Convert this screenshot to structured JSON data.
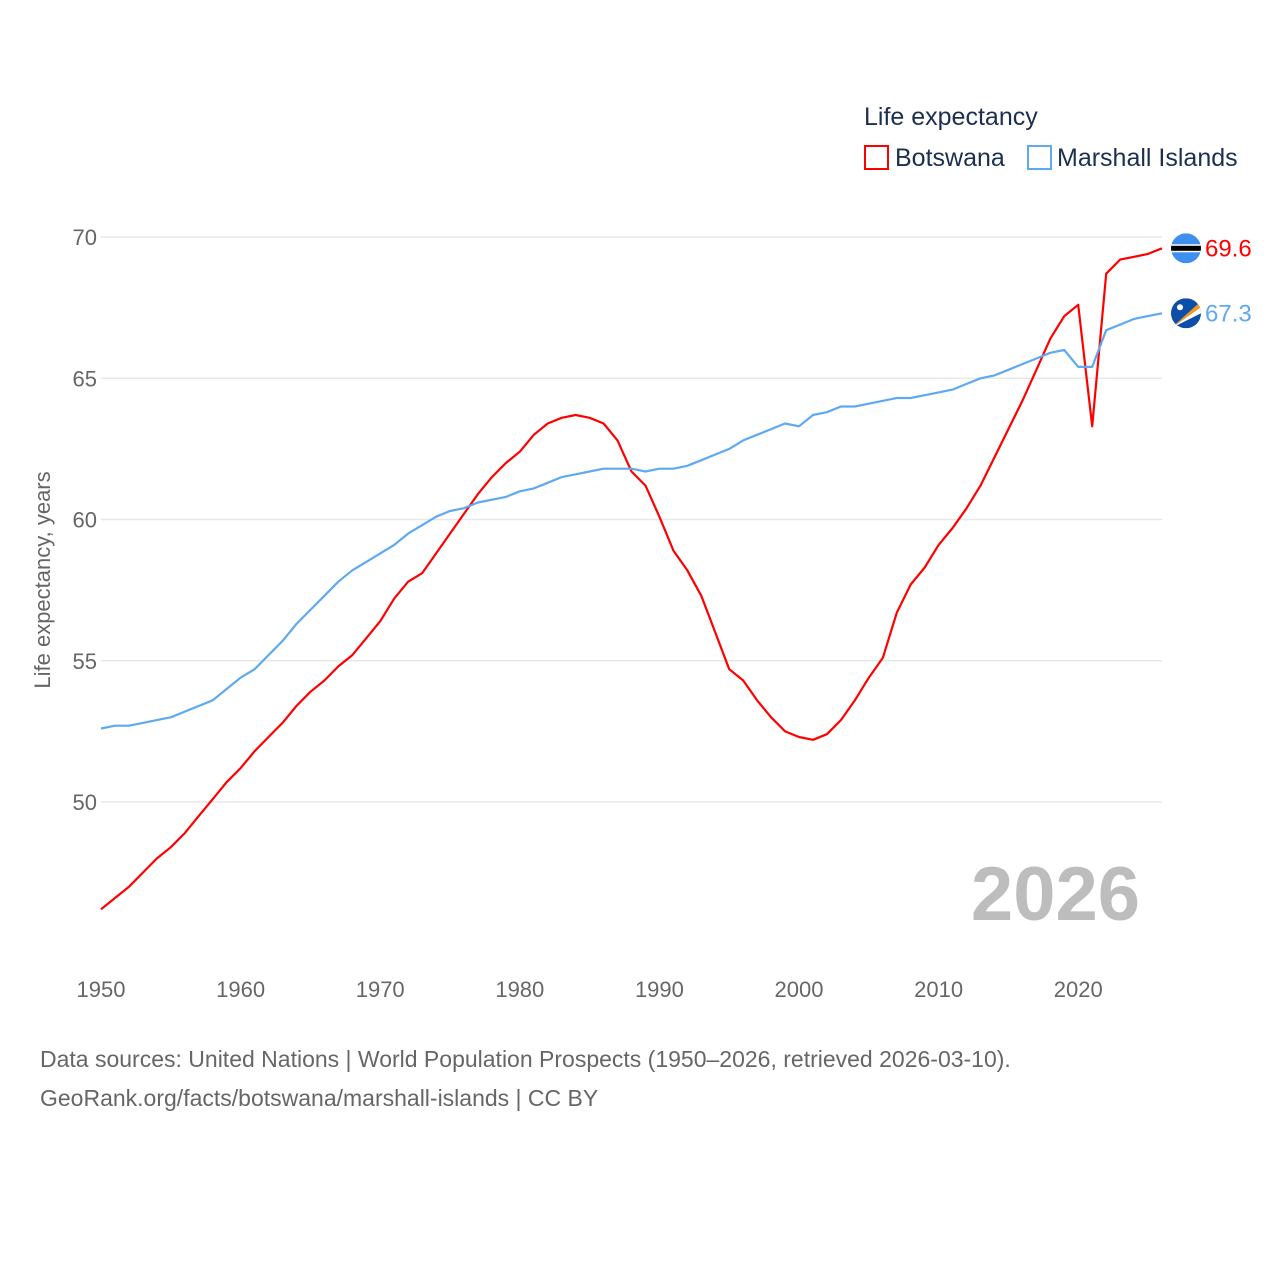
{
  "chart_data": {
    "type": "line",
    "title": "",
    "ylabel": "Life expectancy, years",
    "xlabel": "",
    "xlim": [
      1950,
      2026
    ],
    "ylim": [
      46,
      70
    ],
    "yticks": [
      50,
      55,
      60,
      65,
      70
    ],
    "xticks": [
      1950,
      1960,
      1970,
      1980,
      1990,
      2000,
      2010,
      2020
    ],
    "grid": true,
    "legend_title": "Life expectancy",
    "legend_placement": "top-right",
    "year_label": "2026",
    "x": [
      1950,
      1951,
      1952,
      1953,
      1954,
      1955,
      1956,
      1957,
      1958,
      1959,
      1960,
      1961,
      1962,
      1963,
      1964,
      1965,
      1966,
      1967,
      1968,
      1969,
      1970,
      1971,
      1972,
      1973,
      1974,
      1975,
      1976,
      1977,
      1978,
      1979,
      1980,
      1981,
      1982,
      1983,
      1984,
      1985,
      1986,
      1987,
      1988,
      1989,
      1990,
      1991,
      1992,
      1993,
      1994,
      1995,
      1996,
      1997,
      1998,
      1999,
      2000,
      2001,
      2002,
      2003,
      2004,
      2005,
      2006,
      2007,
      2008,
      2009,
      2010,
      2011,
      2012,
      2013,
      2014,
      2015,
      2016,
      2017,
      2018,
      2019,
      2020,
      2021,
      2022,
      2023,
      2024,
      2025,
      2026
    ],
    "series": [
      {
        "name": "Botswana",
        "color": "#ff0000",
        "end_label": "69.6",
        "values": [
          46.2,
          46.6,
          47.0,
          47.5,
          48.0,
          48.4,
          48.9,
          49.5,
          50.1,
          50.7,
          51.2,
          51.8,
          52.3,
          52.8,
          53.4,
          53.9,
          54.3,
          54.8,
          55.2,
          55.8,
          56.4,
          57.2,
          57.8,
          58.1,
          58.8,
          59.5,
          60.2,
          60.9,
          61.5,
          62.0,
          62.4,
          63.0,
          63.4,
          63.6,
          63.7,
          63.6,
          63.4,
          62.8,
          61.7,
          61.2,
          60.1,
          58.9,
          58.2,
          57.3,
          56.0,
          54.7,
          54.3,
          53.6,
          53.0,
          52.5,
          52.3,
          52.2,
          52.4,
          52.9,
          53.6,
          54.4,
          55.1,
          56.7,
          57.7,
          58.3,
          59.1,
          59.7,
          60.4,
          61.2,
          62.2,
          63.2,
          64.2,
          65.3,
          66.4,
          67.2,
          67.6,
          63.3,
          68.7,
          69.2,
          69.3,
          69.4,
          69.6
        ]
      },
      {
        "name": "Marshall Islands",
        "color": "#5ea9f0",
        "end_label": "67.3",
        "values": [
          52.6,
          52.7,
          52.7,
          52.8,
          52.9,
          53.0,
          53.2,
          53.4,
          53.6,
          54.0,
          54.4,
          54.7,
          55.2,
          55.7,
          56.3,
          56.8,
          57.3,
          57.8,
          58.2,
          58.5,
          58.8,
          59.1,
          59.5,
          59.8,
          60.1,
          60.3,
          60.4,
          60.6,
          60.7,
          60.8,
          61.0,
          61.1,
          61.3,
          61.5,
          61.6,
          61.7,
          61.8,
          61.8,
          61.8,
          61.7,
          61.8,
          61.8,
          61.9,
          62.1,
          62.3,
          62.5,
          62.8,
          63.0,
          63.2,
          63.4,
          63.3,
          63.7,
          63.8,
          64.0,
          64.0,
          64.1,
          64.2,
          64.3,
          64.3,
          64.4,
          64.5,
          64.6,
          64.8,
          65.0,
          65.1,
          65.3,
          65.5,
          65.7,
          65.9,
          66.0,
          65.4,
          65.4,
          66.7,
          66.9,
          67.1,
          67.2,
          67.3
        ]
      }
    ]
  },
  "footer": {
    "line1": "Data sources: United Nations | World Population Prospects (1950–2026, retrieved 2026-03-10).",
    "line2": "GeoRank.org/facts/botswana/marshall-islands | CC BY"
  }
}
